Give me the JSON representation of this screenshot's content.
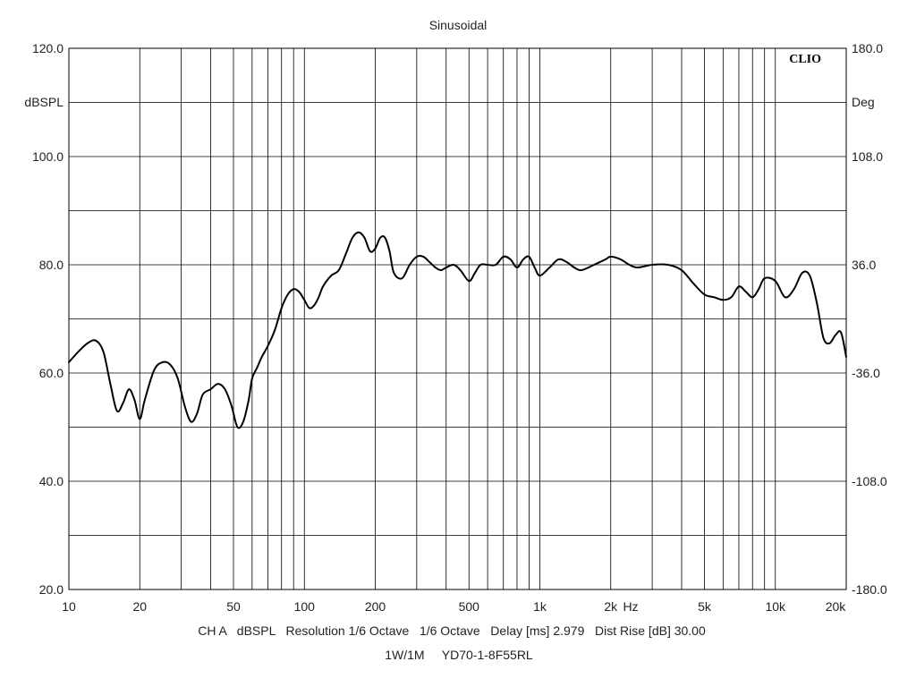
{
  "chart_data": {
    "type": "line",
    "title": "Sinusoidal",
    "brand": "CLIO",
    "x_scale": "log",
    "xlim": [
      10,
      20000
    ],
    "ylim": [
      20,
      120
    ],
    "y2lim": [
      -180,
      180
    ],
    "grid": true,
    "left_unit": "dBSPL",
    "right_unit": "Deg",
    "x_unit": "Hz",
    "y_ticks": [
      {
        "value": 20,
        "label": "20.0"
      },
      {
        "value": 40,
        "label": "40.0"
      },
      {
        "value": 60,
        "label": "60.0"
      },
      {
        "value": 80,
        "label": "80.0"
      },
      {
        "value": 100,
        "label": "100.0"
      },
      {
        "value": 120,
        "label": "120.0"
      }
    ],
    "y_minor_grid": [
      30,
      50,
      70,
      90,
      110
    ],
    "y2_ticks": [
      {
        "value": -180,
        "label": "-180.0"
      },
      {
        "value": -108,
        "label": "-108.0"
      },
      {
        "value": -36,
        "label": "-36.0"
      },
      {
        "value": 36,
        "label": "36.0"
      },
      {
        "value": 108,
        "label": "108.0"
      },
      {
        "value": 180,
        "label": "180.0"
      }
    ],
    "x_ticks": [
      {
        "value": 10,
        "label": "10"
      },
      {
        "value": 20,
        "label": "20"
      },
      {
        "value": 50,
        "label": "50"
      },
      {
        "value": 100,
        "label": "100"
      },
      {
        "value": 200,
        "label": "200"
      },
      {
        "value": 500,
        "label": "500"
      },
      {
        "value": 1000,
        "label": "1k"
      },
      {
        "value": 2000,
        "label": "2k"
      },
      {
        "value": 5000,
        "label": "5k"
      },
      {
        "value": 10000,
        "label": "10k"
      },
      {
        "value": 20000,
        "label": "20k"
      }
    ],
    "series": [
      {
        "color": "#000000",
        "x": [
          10,
          11,
          12,
          13,
          14,
          15,
          16,
          17,
          18,
          19,
          20,
          21,
          23,
          25,
          27,
          29,
          31,
          33,
          35,
          37,
          40,
          43,
          46,
          49,
          52,
          55,
          58,
          60,
          63,
          66,
          70,
          75,
          80,
          85,
          90,
          95,
          100,
          105,
          110,
          115,
          120,
          130,
          140,
          150,
          160,
          170,
          180,
          190,
          200,
          210,
          220,
          230,
          240,
          260,
          280,
          300,
          320,
          340,
          360,
          380,
          400,
          430,
          460,
          500,
          530,
          560,
          600,
          650,
          700,
          750,
          800,
          850,
          900,
          950,
          1000,
          1100,
          1200,
          1300,
          1400,
          1500,
          1700,
          1900,
          2000,
          2200,
          2400,
          2600,
          3000,
          3500,
          4000,
          4500,
          5000,
          5500,
          6000,
          6500,
          7000,
          7500,
          8000,
          8500,
          9000,
          10000,
          11000,
          12000,
          13000,
          14000,
          15000,
          16000,
          17000,
          18000,
          19000,
          20000
        ],
        "y": [
          62.0,
          64.0,
          65.5,
          66.0,
          64.0,
          58.0,
          53.0,
          54.5,
          57.0,
          55.0,
          51.5,
          55.0,
          60.5,
          62.0,
          61.5,
          59.0,
          54.0,
          51.0,
          52.5,
          56.0,
          57.0,
          58.0,
          57.0,
          54.0,
          50.0,
          51.0,
          55.0,
          59.0,
          61.0,
          63.0,
          65.0,
          68.0,
          72.0,
          74.5,
          75.5,
          75.0,
          73.5,
          72.0,
          72.5,
          74.0,
          76.0,
          78.0,
          79.0,
          82.0,
          85.0,
          86.0,
          85.0,
          82.5,
          83.0,
          85.0,
          85.0,
          82.5,
          78.5,
          77.5,
          80.0,
          81.5,
          81.5,
          80.5,
          79.5,
          79.0,
          79.5,
          80.0,
          79.0,
          77.0,
          78.5,
          80.0,
          80.0,
          80.0,
          81.5,
          81.0,
          79.5,
          81.0,
          81.5,
          79.5,
          78.0,
          79.5,
          81.0,
          80.5,
          79.5,
          79.0,
          80.0,
          81.0,
          81.5,
          81.0,
          80.0,
          79.5,
          80.0,
          80.0,
          79.0,
          76.5,
          74.5,
          74.0,
          73.5,
          74.0,
          76.0,
          75.0,
          74.0,
          75.5,
          77.5,
          77.0,
          74.0,
          75.5,
          78.5,
          78.0,
          73.0,
          66.5,
          65.5,
          67.0,
          67.5,
          63.0
        ]
      }
    ]
  },
  "footer": {
    "line1": "CH A   dBSPL   Resolution 1/6 Octave   1/6 Octave   Delay [ms] 2.979   Dist Rise [dB] 30.00",
    "line2": "1W/1M     YD70-1-8F55RL"
  }
}
